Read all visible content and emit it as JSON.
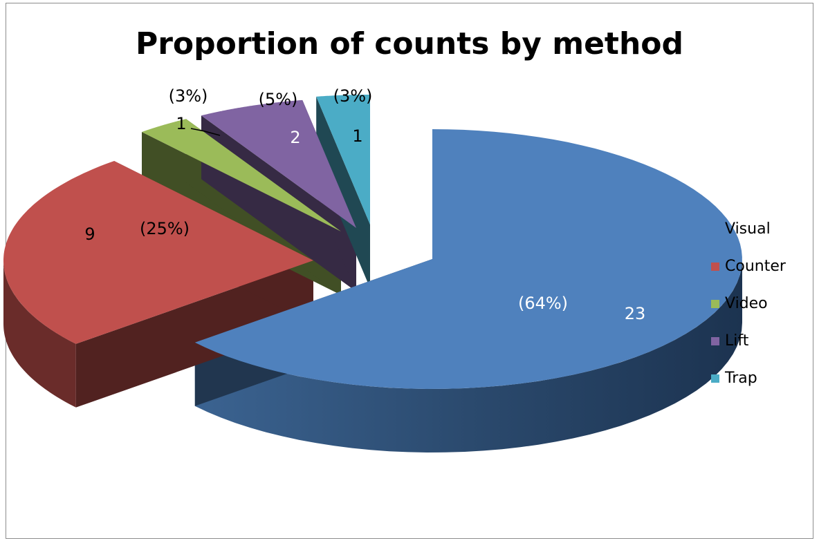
{
  "chart_data": {
    "type": "pie",
    "title": "Proportion of counts by method",
    "categories": [
      "Visual",
      "Counter",
      "Video",
      "Lift",
      "Trap"
    ],
    "values": [
      23,
      9,
      1,
      2,
      1
    ],
    "percent_labels": [
      "(64%)",
      "(25%)",
      "(3%)",
      "(5%)",
      "(3%)"
    ],
    "value_labels": [
      "23",
      "9",
      "1",
      "2",
      "1"
    ],
    "colors": [
      "#4f81bd",
      "#c0504d",
      "#9bbb59",
      "#8064a2",
      "#4bacc6"
    ],
    "style": "3d-exploded",
    "legend_position": "right"
  }
}
